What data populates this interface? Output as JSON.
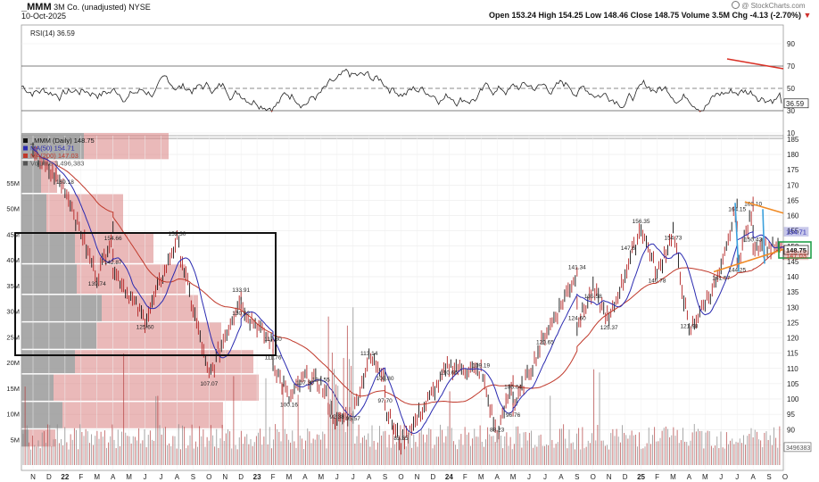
{
  "header": {
    "symbol": "_MMM",
    "company": "3M Co. (unadjusted)",
    "exchange": "NYSE",
    "date": "10-Oct-2025",
    "ohlc_text": "Open 153.24  High 154.25  Low 148.46  Close 148.75  Volume 3.5M  Chg -4.13 (-2.70%)",
    "chg_arrow": "▼",
    "watermark": "@ StockCharts.com",
    "watermark_icon": "stockcharts-logo-icon"
  },
  "rsi_panel": {
    "label": "RSI(14) 36.59",
    "current_value_label": "36.59",
    "ticks": [
      "90",
      "70",
      "50",
      "30",
      "10"
    ]
  },
  "price_panel": {
    "legend": [
      {
        "text": "_MMM (Daily) 148.75",
        "color": "#111111"
      },
      {
        "text": "MA(50) 154.71",
        "color": "#2a2ab0"
      },
      {
        "text": "MA(200) 147.03",
        "color": "#c0392b"
      },
      {
        "text": "Volume 3,496,383",
        "color": "#555555"
      }
    ],
    "price_ticks": [
      "185",
      "180",
      "175",
      "170",
      "165",
      "160",
      "155",
      "150",
      "145",
      "140",
      "135",
      "130",
      "125",
      "120",
      "115",
      "110",
      "105",
      "100",
      "95",
      "90",
      "85"
    ],
    "volume_ticks": [
      "55M",
      "50M",
      "45M",
      "40M",
      "35M",
      "30M",
      "25M",
      "20M",
      "15M",
      "10M",
      "5M"
    ],
    "price_tags": [
      {
        "text": "154.71",
        "color": "#2a2ab0"
      },
      {
        "text": "148.75",
        "color": "#111111"
      },
      {
        "text": "147.03",
        "color": "#c0392b"
      }
    ],
    "volume_tag": "3496383",
    "x_labels": [
      "N",
      "D",
      "22",
      "F",
      "M",
      "A",
      "M",
      "J",
      "J",
      "A",
      "S",
      "O",
      "N",
      "D",
      "23",
      "F",
      "M",
      "A",
      "M",
      "J",
      "J",
      "A",
      "S",
      "O",
      "N",
      "D",
      "24",
      "F",
      "M",
      "A",
      "M",
      "J",
      "J",
      "A",
      "S",
      "O",
      "N",
      "D",
      "25",
      "F",
      "M",
      "A",
      "M",
      "J",
      "J",
      "A",
      "S",
      "O"
    ]
  },
  "annotations": [
    "169.18",
    "154.66",
    "152.30",
    "139.74",
    "142.87",
    "125.60",
    "133.91",
    "130.02",
    "117.80",
    "107.07",
    "111.76",
    "107.30",
    "104.55",
    "100.16",
    "113.14",
    "108.80",
    "97.70",
    "95.57",
    "92.38",
    "110.66",
    "109.19",
    "106.04",
    "88.23",
    "96.76",
    "85.35",
    "120.65",
    "141.34",
    "135.58",
    "124.60",
    "125.37",
    "156.35",
    "140.78",
    "147.6",
    "154.73",
    "121.98",
    "164.15",
    "162.10",
    "141.57",
    "150.43",
    "144.25"
  ],
  "chart_data": [
    {
      "type": "line",
      "title": "RSI(14) 36.59",
      "ylim": [
        0,
        100
      ],
      "reference_lines": [
        70,
        50,
        30
      ],
      "last_value": 36.59
    },
    {
      "type": "candlestick",
      "title": "_MMM (Daily) 148.75",
      "ylim": [
        85,
        187
      ],
      "last_close": 148.75,
      "series": [
        {
          "name": "MA(50) 154.71",
          "last": 154.71
        },
        {
          "name": "MA(200) 147.03",
          "last": 147.03
        },
        {
          "name": "Volume 3,496,383",
          "last": 3496383
        }
      ],
      "swing_points": [
        {
          "x": "Nov-2021",
          "y": 180
        },
        {
          "x": "Jan-2022",
          "y": 169.18
        },
        {
          "x": "Apr-2022",
          "y": 154.66
        },
        {
          "x": "Mar-2022",
          "y": 139.74
        },
        {
          "x": "Apr-2022",
          "y": 142.87
        },
        {
          "x": "Jun-2022",
          "y": 125.6
        },
        {
          "x": "Aug-2022",
          "y": 152.3
        },
        {
          "x": "Oct-2022",
          "y": 107.07
        },
        {
          "x": "Dec-2022",
          "y": 133.91
        },
        {
          "x": "Dec-2022",
          "y": 130.02
        },
        {
          "x": "Feb-2023",
          "y": 117.8
        },
        {
          "x": "Feb-2023",
          "y": 111.76
        },
        {
          "x": "Apr-2023",
          "y": 107.3
        },
        {
          "x": "May-2023",
          "y": 104.55
        },
        {
          "x": "Mar-2023",
          "y": 100.16
        },
        {
          "x": "Jun-2023",
          "y": 92.38
        },
        {
          "x": "Jul-2023",
          "y": 95.57
        },
        {
          "x": "Aug-2023",
          "y": 113.14
        },
        {
          "x": "Sep-2023",
          "y": 108.8
        },
        {
          "x": "Sep-2023",
          "y": 97.7
        },
        {
          "x": "Oct-2023",
          "y": 85.35
        },
        {
          "x": "Jan-2024",
          "y": 110.66
        },
        {
          "x": "Mar-2024",
          "y": 109.19
        },
        {
          "x": "Apr-2024",
          "y": 88.23
        },
        {
          "x": "May-2024",
          "y": 106.04
        },
        {
          "x": "May-2024",
          "y": 96.76
        },
        {
          "x": "Jul-2024",
          "y": 120.65
        },
        {
          "x": "Sep-2024",
          "y": 141.34
        },
        {
          "x": "Sep-2024",
          "y": 124.6
        },
        {
          "x": "Oct-2024",
          "y": 135.58
        },
        {
          "x": "Nov-2024",
          "y": 125.37
        },
        {
          "x": "Jan-2025",
          "y": 156.35
        },
        {
          "x": "Feb-2025",
          "y": 140.78
        },
        {
          "x": "Mar-2025",
          "y": 154.73
        },
        {
          "x": "Apr-2025",
          "y": 121.98
        },
        {
          "x": "Jun-2025",
          "y": 141.57
        },
        {
          "x": "Jul-2025",
          "y": 164.15
        },
        {
          "x": "Jul-2025",
          "y": 144.25
        },
        {
          "x": "Aug-2025",
          "y": 162.1
        },
        {
          "x": "Aug-2025",
          "y": 150.43
        },
        {
          "x": "Oct-2025",
          "y": 148.75
        }
      ]
    }
  ]
}
